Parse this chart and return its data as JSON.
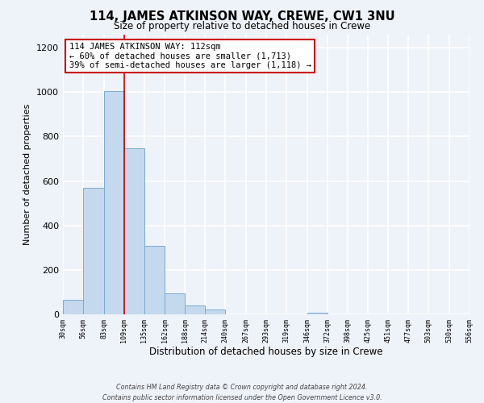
{
  "title": "114, JAMES ATKINSON WAY, CREWE, CW1 3NU",
  "subtitle": "Size of property relative to detached houses in Crewe",
  "xlabel": "Distribution of detached houses by size in Crewe",
  "ylabel": "Number of detached properties",
  "bar_color": "#c5d9ee",
  "bar_edge_color": "#7aaad0",
  "background_color": "#eef2f9",
  "grid_color": "#ffffff",
  "bins": [
    30,
    56,
    83,
    109,
    135,
    162,
    188,
    214,
    240,
    267,
    293,
    319,
    346,
    372,
    398,
    425,
    451,
    477,
    503,
    530,
    556
  ],
  "bin_labels": [
    "30sqm",
    "56sqm",
    "83sqm",
    "109sqm",
    "135sqm",
    "162sqm",
    "188sqm",
    "214sqm",
    "240sqm",
    "267sqm",
    "293sqm",
    "319sqm",
    "346sqm",
    "372sqm",
    "398sqm",
    "425sqm",
    "451sqm",
    "477sqm",
    "503sqm",
    "530sqm",
    "556sqm"
  ],
  "values": [
    65,
    570,
    1005,
    748,
    310,
    93,
    40,
    20,
    0,
    0,
    0,
    0,
    8,
    0,
    0,
    0,
    0,
    0,
    0,
    0
  ],
  "ylim": [
    0,
    1260
  ],
  "red_line_x": 109,
  "annotation_text": "114 JAMES ATKINSON WAY: 112sqm\n← 60% of detached houses are smaller (1,713)\n39% of semi-detached houses are larger (1,118) →",
  "annotation_box_color": "#ffffff",
  "annotation_box_edge_color": "#cc0000",
  "footer_text": "Contains HM Land Registry data © Crown copyright and database right 2024.\nContains public sector information licensed under the Open Government Licence v3.0."
}
